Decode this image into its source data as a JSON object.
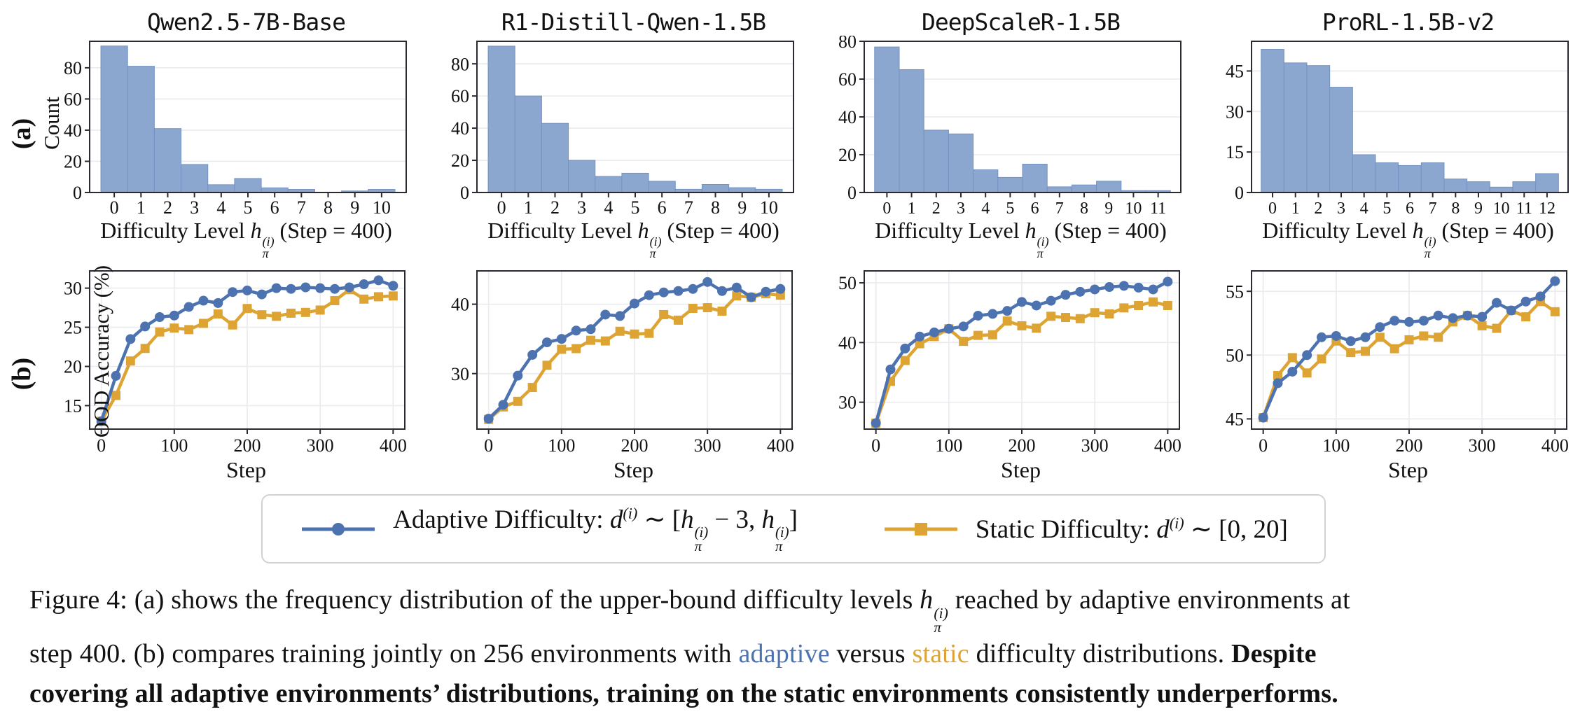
{
  "figure": {
    "row_a_label": "(a)",
    "row_b_label": "(b)",
    "hist_ylabel": "Count",
    "line_ylabel": "OOD Accuracy (%)",
    "line_xlabel": "Step",
    "hist_xlabel_rich": [
      {
        "t": "Difficulty Level "
      },
      {
        "t": "h",
        "i": true
      },
      {
        "stack": {
          "sup": "(i)",
          "sub": "π"
        }
      },
      {
        "t": " (Step = 400)"
      }
    ]
  },
  "colors": {
    "adaptive_blue": "#4C72B0",
    "static_orange": "#DEA433",
    "hist_fill": "#8CA7CF",
    "hist_edge": "#7392C2",
    "frame": "#2A2A32",
    "grid": "#EAEAEF"
  },
  "legend": {
    "adaptive_rich": [
      {
        "t": "Adaptive Difficulty: "
      },
      {
        "t": "d",
        "i": true
      },
      {
        "t": "(i)",
        "sup": true
      },
      {
        "t": " ∼ ["
      },
      {
        "t": "h",
        "i": true
      },
      {
        "stack": {
          "sup": "(i)",
          "sub": "π"
        }
      },
      {
        "t": " − 3, "
      },
      {
        "t": "h",
        "i": true
      },
      {
        "stack": {
          "sup": "(i)",
          "sub": "π"
        }
      },
      {
        "t": "]"
      }
    ],
    "static_rich": [
      {
        "t": "Static Difficulty: "
      },
      {
        "t": "d",
        "i": true
      },
      {
        "t": "(i)",
        "sup": true
      },
      {
        "t": " ∼ [0, 20]"
      }
    ]
  },
  "caption_rich": [
    {
      "t": "Figure 4: (a) shows the frequency distribution of the upper-bound difficulty levels "
    },
    {
      "t": "h",
      "i": true
    },
    {
      "stack": {
        "sup": "(i)",
        "sub": "π"
      }
    },
    {
      "t": " reached by adaptive environments at"
    },
    {
      "br": true
    },
    {
      "t": "step 400. (b) compares training jointly on 256 environments with "
    },
    {
      "t": "adaptive",
      "c": "#4C72B0"
    },
    {
      "t": " versus "
    },
    {
      "t": "static",
      "c": "#DEA433"
    },
    {
      "t": " difficulty distributions. "
    },
    {
      "t": "Despite",
      "b": true
    },
    {
      "br": true
    },
    {
      "t": "covering all adaptive environments’ distributions, training on the static environments consistently underperforms.",
      "b": true
    }
  ],
  "chart_data": {
    "histograms": [
      {
        "type": "bar",
        "title": "Qwen2.5-7B-Base",
        "xlabel": "Difficulty Level h_π^(i) (Step = 400)",
        "ylabel": "Count",
        "categories": [
          0,
          1,
          2,
          3,
          4,
          5,
          6,
          7,
          8,
          9,
          10
        ],
        "values": [
          94,
          81,
          41,
          18,
          5,
          9,
          3,
          2,
          0,
          1,
          2
        ],
        "yticks": [
          0,
          20,
          40,
          60,
          80
        ],
        "ylim": [
          0,
          97
        ],
        "grid": "horizontal"
      },
      {
        "type": "bar",
        "title": "R1-Distill-Qwen-1.5B",
        "xlabel": "Difficulty Level h_π^(i) (Step = 400)",
        "ylabel": "Count",
        "categories": [
          0,
          1,
          2,
          3,
          4,
          5,
          6,
          7,
          8,
          9,
          10
        ],
        "values": [
          91,
          60,
          43,
          20,
          10,
          12,
          7,
          2,
          5,
          3,
          2
        ],
        "yticks": [
          0,
          20,
          40,
          60,
          80
        ],
        "ylim": [
          0,
          94
        ],
        "grid": "horizontal"
      },
      {
        "type": "bar",
        "title": "DeepScaleR-1.5B",
        "xlabel": "Difficulty Level h_π^(i) (Step = 400)",
        "ylabel": "Count",
        "categories": [
          0,
          1,
          2,
          3,
          4,
          5,
          6,
          7,
          8,
          9,
          10,
          11
        ],
        "values": [
          77,
          65,
          33,
          31,
          12,
          8,
          15,
          3,
          4,
          6,
          1,
          1
        ],
        "yticks": [
          0,
          20,
          40,
          60,
          80
        ],
        "ylim": [
          0,
          80
        ],
        "grid": "horizontal"
      },
      {
        "type": "bar",
        "title": "ProRL-1.5B-v2",
        "xlabel": "Difficulty Level h_π^(i) (Step = 400)",
        "ylabel": "Count",
        "categories": [
          0,
          1,
          2,
          3,
          4,
          5,
          6,
          7,
          8,
          9,
          10,
          11,
          12
        ],
        "values": [
          53,
          48,
          47,
          39,
          14,
          11,
          10,
          11,
          5,
          4,
          2,
          4,
          7
        ],
        "yticks": [
          0,
          15,
          30,
          45
        ],
        "ylim": [
          0,
          56
        ],
        "grid": "horizontal"
      }
    ],
    "line_charts": [
      {
        "type": "line",
        "model": "Qwen2.5-7B-Base",
        "xlabel": "Step",
        "ylabel": "OOD Accuracy (%)",
        "x": [
          0,
          20,
          40,
          60,
          80,
          100,
          120,
          140,
          160,
          180,
          200,
          220,
          240,
          260,
          280,
          300,
          320,
          340,
          360,
          380,
          400
        ],
        "xticks": [
          0,
          100,
          200,
          300,
          400
        ],
        "yticks": [
          15,
          20,
          25,
          30
        ],
        "ylim": [
          12,
          32.2
        ],
        "series": [
          {
            "name": "Adaptive Difficulty",
            "values": [
              13.0,
              18.8,
              23.5,
              25.1,
              26.3,
              26.5,
              27.6,
              28.4,
              28.1,
              29.5,
              29.7,
              29.2,
              30.0,
              29.9,
              30.1,
              30.0,
              29.9,
              30.1,
              30.5,
              31.0,
              30.3
            ]
          },
          {
            "name": "Static Difficulty",
            "values": [
              13.0,
              16.3,
              20.7,
              22.3,
              24.4,
              24.9,
              24.7,
              25.5,
              26.7,
              25.3,
              27.4,
              26.6,
              26.4,
              26.8,
              26.9,
              27.2,
              28.4,
              29.8,
              28.6,
              28.9,
              29.0
            ]
          }
        ]
      },
      {
        "type": "line",
        "model": "R1-Distill-Qwen-1.5B",
        "xlabel": "Step",
        "ylabel": "OOD Accuracy (%)",
        "x": [
          0,
          20,
          40,
          60,
          80,
          100,
          120,
          140,
          160,
          180,
          200,
          220,
          240,
          260,
          280,
          300,
          320,
          340,
          360,
          380,
          400
        ],
        "xticks": [
          0,
          100,
          200,
          300,
          400
        ],
        "yticks": [
          30,
          40
        ],
        "ylim": [
          22,
          44.8
        ],
        "series": [
          {
            "name": "Adaptive Difficulty",
            "values": [
              23.5,
              25.5,
              29.7,
              32.7,
              34.5,
              35.0,
              36.2,
              36.4,
              38.5,
              38.3,
              40.1,
              41.3,
              41.7,
              41.9,
              42.2,
              43.2,
              41.9,
              42.4,
              41.0,
              41.8,
              42.2
            ]
          },
          {
            "name": "Static Difficulty",
            "values": [
              23.4,
              25.2,
              26.0,
              28.0,
              31.2,
              33.5,
              33.6,
              34.8,
              34.7,
              36.1,
              35.7,
              35.8,
              38.5,
              37.7,
              39.4,
              39.5,
              39.0,
              41.2,
              41.0,
              41.5,
              41.3
            ]
          }
        ]
      },
      {
        "type": "line",
        "model": "DeepScaleR-1.5B",
        "xlabel": "Step",
        "ylabel": "OOD Accuracy (%)",
        "x": [
          0,
          20,
          40,
          60,
          80,
          100,
          120,
          140,
          160,
          180,
          200,
          220,
          240,
          260,
          280,
          300,
          320,
          340,
          360,
          380,
          400
        ],
        "xticks": [
          0,
          100,
          200,
          300,
          400
        ],
        "yticks": [
          30,
          40,
          50
        ],
        "ylim": [
          25.5,
          52
        ],
        "series": [
          {
            "name": "Adaptive Difficulty",
            "values": [
              26.5,
              35.5,
              39.0,
              41.0,
              41.7,
              42.3,
              42.7,
              44.5,
              44.8,
              45.3,
              46.8,
              46.2,
              47.0,
              48.0,
              48.5,
              48.9,
              49.3,
              49.5,
              49.2,
              48.9,
              50.2
            ]
          },
          {
            "name": "Static Difficulty",
            "values": [
              26.5,
              33.5,
              37.0,
              39.8,
              41.0,
              42.3,
              40.2,
              41.2,
              41.3,
              43.6,
              42.8,
              42.4,
              44.4,
              44.2,
              44.0,
              45.0,
              44.8,
              45.8,
              46.2,
              46.8,
              46.2
            ]
          }
        ]
      },
      {
        "type": "line",
        "model": "ProRL-1.5B-v2",
        "xlabel": "Step",
        "ylabel": "OOD Accuracy (%)",
        "x": [
          0,
          20,
          40,
          60,
          80,
          100,
          120,
          140,
          160,
          180,
          200,
          220,
          240,
          260,
          280,
          300,
          320,
          340,
          360,
          380,
          400
        ],
        "xticks": [
          0,
          100,
          200,
          300,
          400
        ],
        "yticks": [
          45,
          50,
          55
        ],
        "ylim": [
          44.2,
          56.6
        ],
        "series": [
          {
            "name": "Adaptive Difficulty",
            "values": [
              45.1,
              47.8,
              48.7,
              50.0,
              51.4,
              51.5,
              51.1,
              51.4,
              52.2,
              52.7,
              52.6,
              52.7,
              53.1,
              52.9,
              53.1,
              53.0,
              54.1,
              53.5,
              54.2,
              54.6,
              55.8
            ]
          },
          {
            "name": "Static Difficulty",
            "values": [
              45.1,
              48.4,
              49.8,
              48.6,
              49.7,
              51.1,
              50.2,
              50.3,
              51.4,
              50.5,
              51.2,
              51.5,
              51.4,
              52.6,
              53.1,
              52.3,
              52.1,
              53.5,
              53.0,
              54.2,
              53.4
            ]
          }
        ]
      }
    ]
  }
}
